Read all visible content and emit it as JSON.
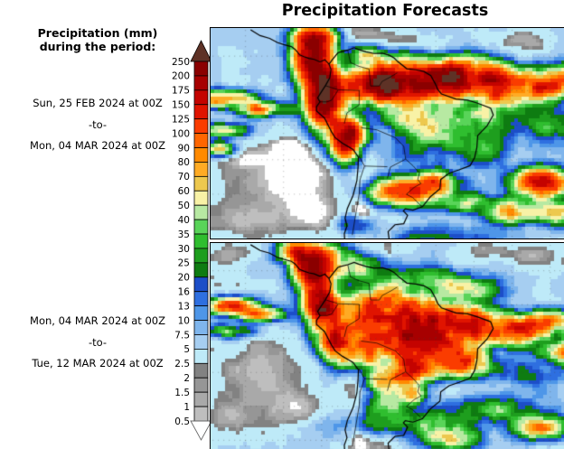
{
  "title": "Precipitation Forecasts",
  "sidebar": {
    "heading_line1": "Precipitation (mm)",
    "heading_line2": "during the period:",
    "periods": [
      {
        "start": "Sun, 25 FEB 2024 at 00Z",
        "separator": "-to-",
        "end": "Mon, 04 MAR 2024 at 00Z"
      },
      {
        "start": "Mon, 04 MAR 2024 at 00Z",
        "separator": "-to-",
        "end": "Tue, 12 MAR 2024 at 00Z"
      }
    ]
  },
  "colorbar": {
    "unit": "mm",
    "thresholds": [
      0.5,
      1,
      1.5,
      2,
      2.5,
      5,
      7.5,
      10,
      13,
      16,
      20,
      25,
      30,
      35,
      40,
      50,
      60,
      70,
      80,
      90,
      100,
      125,
      150,
      175,
      200,
      250
    ],
    "colors": [
      "#FFFFFF",
      "#BEBEBE",
      "#A9A9A9",
      "#969696",
      "#828282",
      "#BEEAF8",
      "#A6CEF1",
      "#7FB5EC",
      "#4E96E8",
      "#2E6FE0",
      "#1C4EC8",
      "#0E7C11",
      "#1E9E1E",
      "#2FBE2F",
      "#59D459",
      "#B7E9A2",
      "#F8F2A6",
      "#EDC84E",
      "#FFAB24",
      "#FF8A00",
      "#FF6600",
      "#FA3C00",
      "#E01400",
      "#C40300",
      "#A70000",
      "#8B0000",
      "#5E3226"
    ],
    "arrow_top_color": "#5E3226",
    "arrow_bottom_color": "#FFFFFF"
  },
  "maps": {
    "panels": [
      {
        "name": "forecast-week-1",
        "period": "Sun, 25 FEB 2024 00Z to Mon, 04 MAR 2024 00Z",
        "texture_seed": 3,
        "base": 4.5,
        "features": [
          [
            0.285,
            0.13,
            0.045,
            0.1,
            150
          ],
          [
            0.325,
            0.32,
            0.045,
            0.13,
            190
          ],
          [
            0.385,
            0.5,
            0.04,
            0.1,
            150
          ],
          [
            0.3,
            0.05,
            0.05,
            0.05,
            120
          ],
          [
            0.47,
            0.26,
            0.1,
            0.075,
            150
          ],
          [
            0.6,
            0.25,
            0.1,
            0.08,
            180
          ],
          [
            0.73,
            0.23,
            0.09,
            0.07,
            170
          ],
          [
            0.84,
            0.3,
            0.08,
            0.06,
            110
          ],
          [
            0.96,
            0.25,
            0.08,
            0.06,
            95
          ],
          [
            0.93,
            0.44,
            0.1,
            0.08,
            26
          ],
          [
            0.66,
            0.5,
            0.13,
            0.11,
            24
          ],
          [
            0.58,
            0.42,
            0.08,
            0.07,
            30
          ],
          [
            0.77,
            0.4,
            0.06,
            0.05,
            35
          ],
          [
            0.45,
            0.13,
            0.07,
            0.04,
            30
          ],
          [
            0.76,
            0.58,
            0.07,
            0.06,
            14
          ],
          [
            0.55,
            0.77,
            0.09,
            0.055,
            85
          ],
          [
            0.645,
            0.72,
            0.06,
            0.05,
            55
          ],
          [
            0.71,
            0.82,
            0.06,
            0.045,
            45
          ],
          [
            0.935,
            0.73,
            0.07,
            0.06,
            110
          ],
          [
            0.86,
            0.86,
            0.07,
            0.05,
            70
          ],
          [
            1.0,
            0.87,
            0.06,
            0.05,
            60
          ],
          [
            0.04,
            0.33,
            0.07,
            0.035,
            100
          ],
          [
            0.15,
            0.38,
            0.07,
            0.03,
            70
          ],
          [
            0.04,
            0.48,
            0.06,
            0.03,
            40
          ],
          [
            0.02,
            0.57,
            0.04,
            0.03,
            60
          ],
          [
            0.66,
            0.985,
            0.18,
            0.05,
            16
          ],
          [
            0.42,
            0.92,
            0.05,
            0.04,
            20
          ],
          [
            0.4,
            0.03,
            0.12,
            0.06,
            -4.0
          ],
          [
            0.55,
            0.06,
            0.06,
            0.04,
            -2.8
          ],
          [
            0.64,
            0.09,
            0.06,
            0.04,
            -2.9
          ],
          [
            0.88,
            0.06,
            0.09,
            0.05,
            -3.0
          ],
          [
            0.17,
            0.73,
            0.17,
            0.2,
            -3.6
          ],
          [
            0.27,
            0.62,
            0.1,
            0.12,
            -3.2
          ],
          [
            0.3,
            0.88,
            0.1,
            0.12,
            -3.4
          ],
          [
            0.06,
            0.92,
            0.1,
            0.09,
            -2.6
          ],
          [
            0.425,
            0.75,
            0.03,
            0.18,
            -4.5
          ],
          [
            0.43,
            0.9,
            0.025,
            0.1,
            -4.3
          ],
          [
            0.485,
            0.93,
            0.07,
            0.08,
            -3.6
          ],
          [
            0.07,
            0.6,
            0.08,
            0.05,
            -2.8
          ],
          [
            0.22,
            0.55,
            0.06,
            0.04,
            -2.2
          ]
        ]
      },
      {
        "name": "forecast-week-2",
        "period": "Mon, 04 MAR 2024 00Z to Tue, 12 MAR 2024 00Z",
        "texture_seed": 11,
        "base": 4.5,
        "features": [
          [
            0.5,
            0.33,
            0.11,
            0.1,
            120
          ],
          [
            0.6,
            0.45,
            0.11,
            0.1,
            130
          ],
          [
            0.7,
            0.38,
            0.09,
            0.08,
            120
          ],
          [
            0.46,
            0.5,
            0.08,
            0.08,
            90
          ],
          [
            0.58,
            0.6,
            0.07,
            0.06,
            80
          ],
          [
            0.72,
            0.57,
            0.06,
            0.06,
            110
          ],
          [
            0.84,
            0.42,
            0.08,
            0.06,
            120
          ],
          [
            0.95,
            0.38,
            0.07,
            0.05,
            100
          ],
          [
            1.0,
            0.52,
            0.06,
            0.05,
            70
          ],
          [
            0.295,
            0.12,
            0.05,
            0.08,
            140
          ],
          [
            0.315,
            0.3,
            0.045,
            0.11,
            150
          ],
          [
            0.36,
            0.47,
            0.04,
            0.09,
            110
          ],
          [
            0.25,
            0.04,
            0.05,
            0.05,
            90
          ],
          [
            0.42,
            0.12,
            0.08,
            0.05,
            45
          ],
          [
            0.33,
            0.05,
            0.08,
            0.04,
            25
          ],
          [
            0.52,
            0.2,
            0.05,
            0.06,
            12
          ],
          [
            0.62,
            0.17,
            0.09,
            0.05,
            30
          ],
          [
            0.74,
            0.22,
            0.07,
            0.05,
            40
          ],
          [
            0.04,
            0.3,
            0.07,
            0.035,
            90
          ],
          [
            0.14,
            0.34,
            0.06,
            0.03,
            55
          ],
          [
            0.05,
            0.42,
            0.06,
            0.03,
            35
          ],
          [
            0.5,
            0.66,
            0.05,
            0.05,
            70
          ],
          [
            0.57,
            0.72,
            0.04,
            0.04,
            50
          ],
          [
            0.56,
            0.86,
            0.16,
            0.06,
            26
          ],
          [
            0.8,
            0.79,
            0.11,
            0.06,
            30
          ],
          [
            0.93,
            0.88,
            0.07,
            0.05,
            60
          ],
          [
            0.68,
            0.93,
            0.07,
            0.045,
            45
          ],
          [
            0.5,
            0.76,
            0.06,
            0.05,
            30
          ],
          [
            0.9,
            0.62,
            0.1,
            0.07,
            14
          ],
          [
            0.14,
            0.62,
            0.16,
            0.18,
            -3.7
          ],
          [
            0.05,
            0.84,
            0.12,
            0.1,
            -3.0
          ],
          [
            0.26,
            0.8,
            0.08,
            0.1,
            -3.2
          ],
          [
            0.41,
            0.75,
            0.028,
            0.18,
            -4.4
          ],
          [
            0.42,
            0.9,
            0.025,
            0.1,
            -4.2
          ],
          [
            0.47,
            0.95,
            0.07,
            0.07,
            -3.7
          ],
          [
            0.05,
            0.05,
            0.09,
            0.06,
            -3.5
          ],
          [
            0.44,
            0.03,
            0.08,
            0.045,
            -3.4
          ],
          [
            0.9,
            0.05,
            0.1,
            0.055,
            -3.7
          ],
          [
            0.76,
            0.03,
            0.06,
            0.04,
            -2.5
          ]
        ]
      }
    ],
    "geo": {
      "lon_range": [
        -109,
        -16
      ],
      "lat_range": [
        -43,
        18
      ],
      "coastline": [
        [
          -77.9,
          7.5
        ],
        [
          -77.2,
          8.6
        ],
        [
          -75.6,
          10.8
        ],
        [
          -74.8,
          11.1
        ],
        [
          -73.0,
          11.6
        ],
        [
          -71.3,
          12.3
        ],
        [
          -70.0,
          11.7
        ],
        [
          -68.2,
          11.1
        ],
        [
          -66.1,
          10.6
        ],
        [
          -63.9,
          10.7
        ],
        [
          -62.1,
          10.1
        ],
        [
          -60.8,
          9.3
        ],
        [
          -59.9,
          8.3
        ],
        [
          -57.5,
          6.2
        ],
        [
          -55.1,
          5.9
        ],
        [
          -53.0,
          5.4
        ],
        [
          -51.2,
          4.2
        ],
        [
          -50.0,
          1.8
        ],
        [
          -49.4,
          0.2
        ],
        [
          -48.4,
          -1.1
        ],
        [
          -44.6,
          -2.6
        ],
        [
          -41.5,
          -2.9
        ],
        [
          -38.9,
          -3.8
        ],
        [
          -35.5,
          -5.2
        ],
        [
          -34.8,
          -7.2
        ],
        [
          -36.4,
          -10.3
        ],
        [
          -38.9,
          -13.2
        ],
        [
          -39.1,
          -16.6
        ],
        [
          -39.7,
          -19.6
        ],
        [
          -40.9,
          -21.9
        ],
        [
          -43.8,
          -23.1
        ],
        [
          -46.4,
          -24.1
        ],
        [
          -48.6,
          -25.9
        ],
        [
          -48.8,
          -28.6
        ],
        [
          -51.3,
          -30.9
        ],
        [
          -53.4,
          -33.8
        ],
        [
          -55.9,
          -34.8
        ],
        [
          -57.9,
          -34.4
        ],
        [
          -58.4,
          -35.0
        ],
        [
          -57.3,
          -36.3
        ],
        [
          -58.3,
          -38.7
        ],
        [
          -60.6,
          -39.0
        ],
        [
          -62.4,
          -41.0
        ],
        [
          -62.1,
          -43.5
        ],
        [
          -73.8,
          -43.5
        ],
        [
          -73.9,
          -41.6
        ],
        [
          -73.2,
          -39.4
        ],
        [
          -73.7,
          -37.1
        ],
        [
          -73.1,
          -34.3
        ],
        [
          -71.6,
          -30.5
        ],
        [
          -70.6,
          -26.2
        ],
        [
          -70.3,
          -22.4
        ],
        [
          -70.2,
          -19.4
        ],
        [
          -71.6,
          -17.2
        ],
        [
          -74.4,
          -15.4
        ],
        [
          -76.3,
          -13.8
        ],
        [
          -77.3,
          -12.0
        ],
        [
          -79.1,
          -8.1
        ],
        [
          -81.2,
          -6.0
        ],
        [
          -81.2,
          -4.8
        ],
        [
          -80.3,
          -3.4
        ],
        [
          -80.9,
          -2.2
        ],
        [
          -80.1,
          -0.8
        ],
        [
          -78.8,
          1.4
        ],
        [
          -77.7,
          3.6
        ],
        [
          -77.4,
          6.0
        ],
        [
          -77.9,
          7.5
        ]
      ],
      "central_america": [
        [
          -98.5,
          17.5
        ],
        [
          -96.0,
          15.8
        ],
        [
          -93.5,
          15.0
        ],
        [
          -91.5,
          13.8
        ],
        [
          -89.8,
          13.2
        ],
        [
          -87.8,
          12.6
        ],
        [
          -86.8,
          11.8
        ],
        [
          -85.6,
          10.2
        ],
        [
          -84.5,
          9.7
        ],
        [
          -83.2,
          9.2
        ],
        [
          -81.8,
          8.9
        ],
        [
          -80.3,
          8.2
        ],
        [
          -79.0,
          8.8
        ],
        [
          -77.9,
          7.5
        ]
      ],
      "borders": [
        [
          [
            -73.0,
            11.6
          ],
          [
            -72.3,
            8.0
          ],
          [
            -70.1,
            6.9
          ],
          [
            -67.4,
            6.1
          ],
          [
            -67.2,
            3.2
          ],
          [
            -67.0,
            1.2
          ]
        ],
        [
          [
            -67.0,
            1.2
          ],
          [
            -64.7,
            1.2
          ],
          [
            -64.0,
            2.5
          ],
          [
            -61.8,
            3.8
          ],
          [
            -60.0,
            5.0
          ]
        ],
        [
          [
            -78.9,
            1.3
          ],
          [
            -75.5,
            0.1
          ],
          [
            -70.0,
            -0.1
          ],
          [
            -70.0,
            -4.3
          ],
          [
            -73.2,
            -6.6
          ],
          [
            -73.9,
            -9.7
          ]
        ],
        [
          [
            -80.3,
            -3.4
          ],
          [
            -78.4,
            -3.4
          ],
          [
            -77.2,
            -2.9
          ],
          [
            -75.6,
            -0.1
          ]
        ],
        [
          [
            -69.5,
            -10.9
          ],
          [
            -65.4,
            -11.5
          ],
          [
            -60.5,
            -13.8
          ],
          [
            -58.3,
            -16.3
          ],
          [
            -57.8,
            -20.0
          ],
          [
            -61.8,
            -22.3
          ],
          [
            -62.6,
            -25.6
          ]
        ],
        [
          [
            -57.8,
            -20.0
          ],
          [
            -55.8,
            -22.0
          ],
          [
            -54.2,
            -24.0
          ],
          [
            -54.6,
            -25.9
          ],
          [
            -53.8,
            -27.1
          ]
        ],
        [
          [
            -53.8,
            -27.1
          ],
          [
            -55.6,
            -28.2
          ],
          [
            -57.6,
            -30.2
          ],
          [
            -56.0,
            -31.1
          ],
          [
            -53.5,
            -33.8
          ]
        ],
        [
          [
            -70.1,
            -19.0
          ],
          [
            -68.6,
            -22.0
          ],
          [
            -69.8,
            -26.0
          ],
          [
            -70.0,
            -30.0
          ],
          [
            -70.6,
            -34.0
          ],
          [
            -71.2,
            -38.0
          ],
          [
            -71.8,
            -42.0
          ]
        ],
        [
          [
            -68.6,
            -22.0
          ],
          [
            -62.6,
            -22.2
          ]
        ]
      ]
    }
  }
}
